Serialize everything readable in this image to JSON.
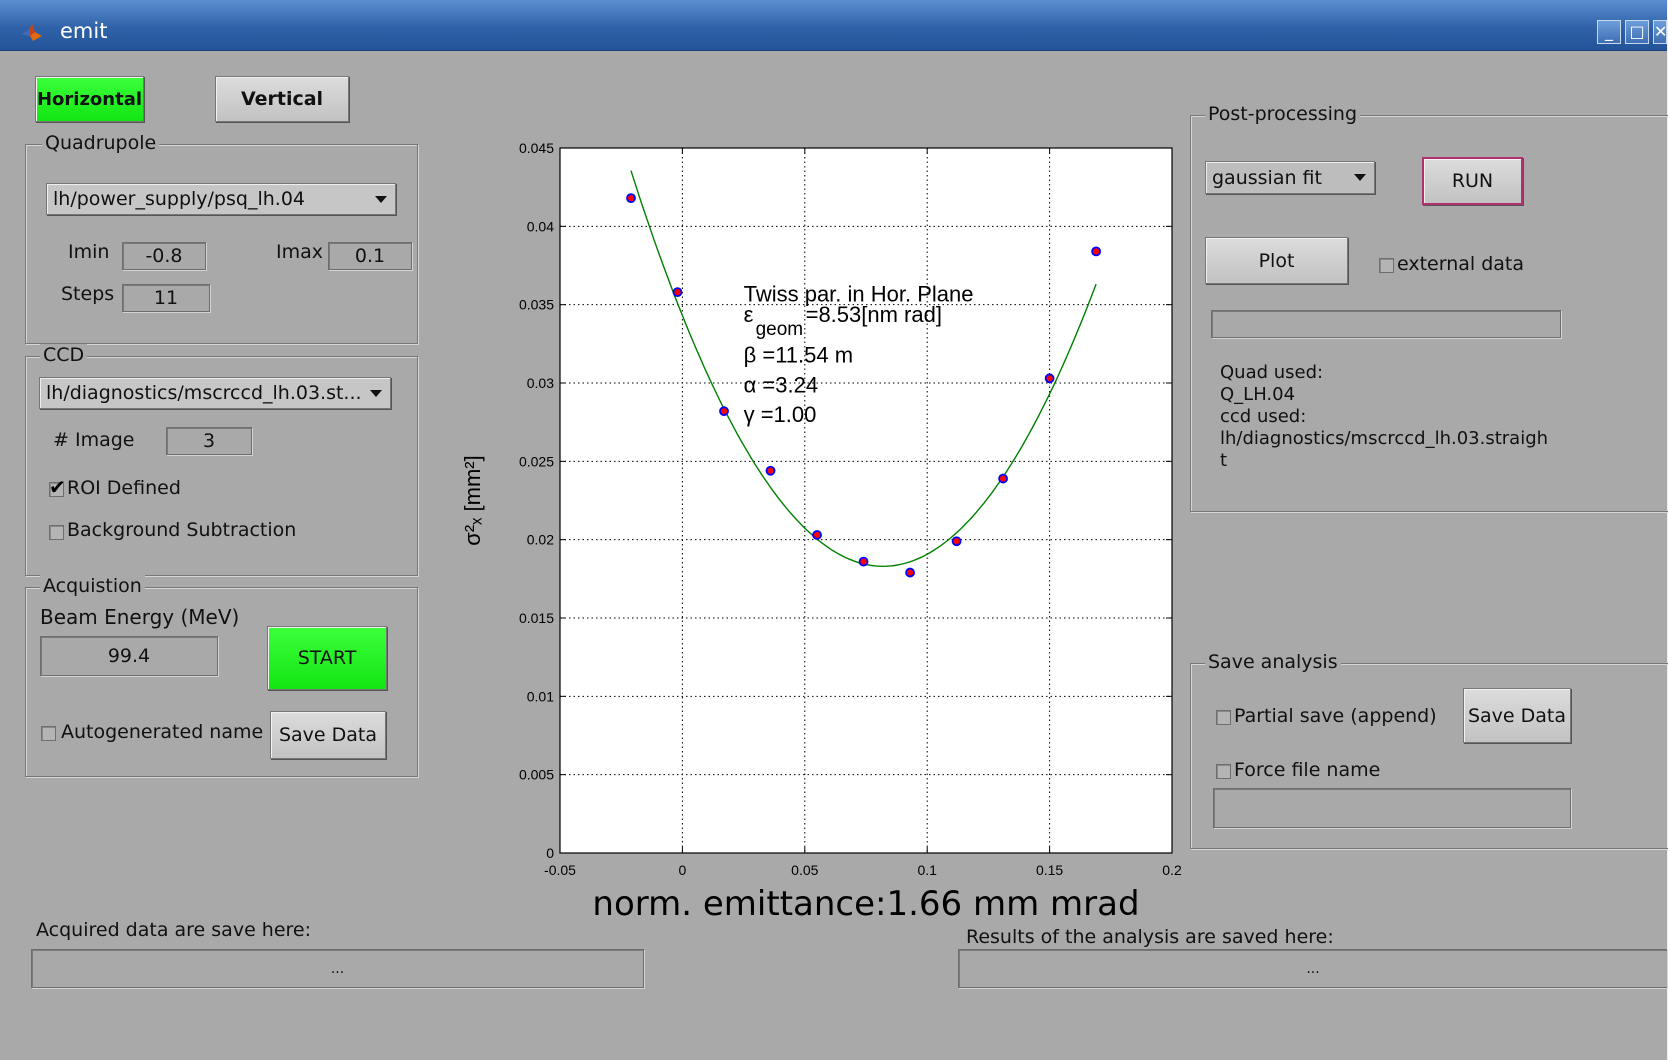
{
  "window": {
    "title": "emit",
    "minimize_glyph": "_",
    "maximize_glyph": "□",
    "close_glyph": "✕"
  },
  "plane": {
    "horizontal_label": "Horizontal",
    "vertical_label": "Vertical",
    "selected": "Horizontal"
  },
  "quadrupole": {
    "legend": "Quadrupole",
    "device": "lh/power_supply/psq_lh.04",
    "imin_label": "Imin",
    "imin_value": "-0.8",
    "imax_label": "Imax",
    "imax_value": "0.1",
    "steps_label": "Steps",
    "steps_value": "11"
  },
  "ccd": {
    "legend": "CCD",
    "device": "lh/diagnostics/mscrccd_lh.03.st...",
    "image_label": "# Image",
    "image_value": "3",
    "roi_label": "ROI Defined",
    "roi_checked": true,
    "bg_label": "Background Subtraction",
    "bg_checked": false
  },
  "acquisition": {
    "legend": "Acquistion",
    "energy_label": "Beam Energy (MeV)",
    "energy_value": "99.4",
    "start_label": "START",
    "autoname_label": "Autogenerated name",
    "autoname_checked": false,
    "save_label": "Save Data"
  },
  "chart_data": {
    "type": "scatter",
    "xlabel": "norm. emittance:1.66 mm mrad",
    "ylabel": "σ²ₓ [mm²]",
    "xlim": [
      -0.05,
      0.2
    ],
    "ylim": [
      0,
      0.045
    ],
    "xticks": [
      "-0.05",
      "0",
      "0.05",
      "0.1",
      "0.15",
      "0.2"
    ],
    "yticks": [
      "0",
      "0.005",
      "0.01",
      "0.015",
      "0.02",
      "0.025",
      "0.03",
      "0.035",
      "0.04",
      "0.045"
    ],
    "grid": true,
    "points": [
      {
        "x": -0.021,
        "y": 0.0418
      },
      {
        "x": -0.002,
        "y": 0.0358
      },
      {
        "x": 0.017,
        "y": 0.0282
      },
      {
        "x": 0.036,
        "y": 0.0244
      },
      {
        "x": 0.055,
        "y": 0.0203
      },
      {
        "x": 0.074,
        "y": 0.0186
      },
      {
        "x": 0.093,
        "y": 0.0179
      },
      {
        "x": 0.112,
        "y": 0.0199
      },
      {
        "x": 0.131,
        "y": 0.0239
      },
      {
        "x": 0.15,
        "y": 0.0303
      },
      {
        "x": 0.169,
        "y": 0.0384
      }
    ],
    "fit": {
      "name": "fit",
      "vertex_x": 0.082,
      "vertex_y": 0.0183,
      "curvature": 2.38,
      "x_range": [
        -0.021,
        0.169
      ],
      "color": "#008000"
    },
    "marker_color": "#0000ff",
    "marker_fill": "#ff0000",
    "annotation": {
      "line1": "Twiss par. in Hor. Plane",
      "eps_symbol": "ε",
      "eps_sub": "geom",
      "eps_value": " =8.53[nm rad]",
      "beta": "β =11.54 m",
      "alpha": "α =3.24",
      "gamma": "γ =1.00"
    }
  },
  "post": {
    "legend": "Post-processing",
    "method": "gaussian fit",
    "run_label": "RUN",
    "plot_label": "Plot",
    "external_label": "external data",
    "external_checked": false,
    "file_value": "",
    "info_lines": [
      "Quad used:",
      "Q_LH.04",
      "ccd used:",
      "lh/diagnostics/mscrccd_lh.03.straigh",
      "t"
    ]
  },
  "save": {
    "legend": "Save analysis",
    "partial_label": "Partial save (append)",
    "partial_checked": false,
    "save_label": "Save Data",
    "force_label": "Force file name",
    "force_checked": false,
    "name_value": ""
  },
  "footer": {
    "acq_label": "Acquired data are save here:",
    "acq_value": "...",
    "res_label": "Results of the analysis are saved here:",
    "res_value": "..."
  },
  "colors": {
    "background": "#a9a9a9",
    "active_green": "#13e513",
    "titlebar": "#2f62a8",
    "run_border": "#b03070"
  }
}
